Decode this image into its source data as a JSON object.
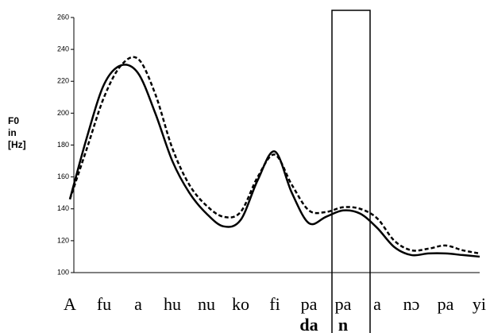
{
  "chart_data": {
    "type": "line",
    "ylabel": [
      "F0",
      "in",
      "[Hz]"
    ],
    "categories": [
      "A",
      null,
      "fu",
      null,
      "a",
      null,
      "hu",
      null,
      "nu",
      null,
      "ko",
      null,
      "fi",
      null,
      "pa",
      null,
      "pa",
      null,
      "a",
      null,
      "nɔ",
      null,
      "pa",
      null,
      "yi"
    ],
    "sublabels": [
      null,
      null,
      null,
      null,
      null,
      null,
      null,
      null,
      null,
      null,
      null,
      null,
      null,
      null,
      "da",
      null,
      "n",
      null,
      null,
      null,
      null,
      null,
      null,
      null,
      null
    ],
    "series": [
      {
        "name": "solid",
        "color": "#000000",
        "values": [
          146,
          185,
          218,
          230,
          225,
          200,
          170,
          150,
          137,
          129,
          133,
          158,
          176,
          150,
          131,
          135,
          139,
          137,
          128,
          116,
          111,
          112,
          112,
          111,
          110
        ]
      },
      {
        "name": "dashed",
        "color": "#000000",
        "values": [
          146,
          178,
          210,
          230,
          234,
          212,
          178,
          155,
          142,
          135,
          138,
          160,
          174,
          155,
          139,
          138,
          141,
          140,
          134,
          120,
          114,
          115,
          117,
          114,
          112
        ]
      }
    ],
    "ylim": [
      100,
      260
    ],
    "yticks": [
      100,
      120,
      140,
      160,
      180,
      200,
      220,
      240,
      260
    ]
  }
}
